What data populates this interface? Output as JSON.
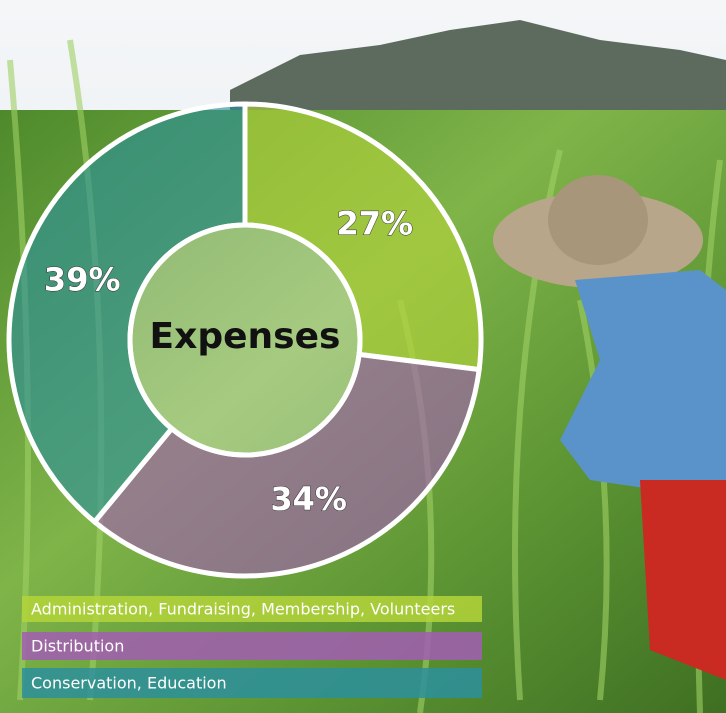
{
  "chart_data": {
    "type": "pie",
    "center_label": "Expenses",
    "categories": [
      "Administration, Fundraising, Membership, Volunteers",
      "Distribution",
      "Conservation, Education"
    ],
    "values": [
      27,
      34,
      39
    ],
    "value_labels": [
      "27%",
      "34%",
      "39%"
    ],
    "colors": [
      "#b4d43a",
      "#a25db3",
      "#2b8f9c"
    ],
    "start_angle": 0,
    "direction": "clockwise"
  }
}
